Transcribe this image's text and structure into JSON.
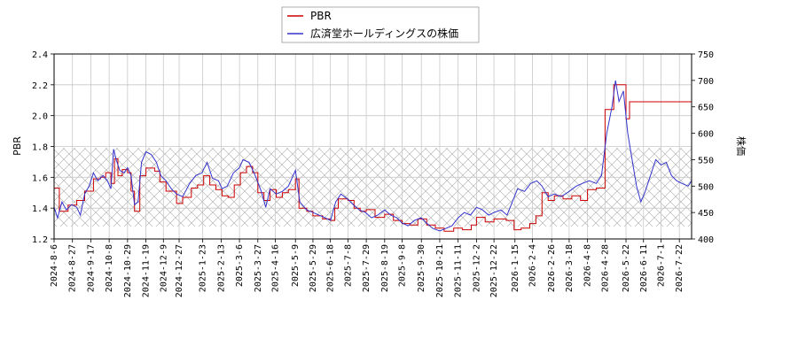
{
  "chart_data": {
    "type": "line",
    "ylabel_left": "PBR",
    "ylabel_right": "株価",
    "ylim_left": [
      1.2,
      2.4
    ],
    "ylim_right": [
      400,
      750
    ],
    "yticks_left": [
      "1.2",
      "1.4",
      "1.6",
      "1.8",
      "2.0",
      "2.2",
      "2.4"
    ],
    "yticks_right": [
      "400",
      "450",
      "500",
      "550",
      "600",
      "650",
      "700",
      "750"
    ],
    "xlim": [
      "2024-08-06",
      "2026-08-05"
    ],
    "xticks": [
      "2024-8-6",
      "2024-8-27",
      "2024-9-17",
      "2024-10-8",
      "2024-10-29",
      "2024-11-19",
      "2024-12-9",
      "2024-12-27",
      "2025-1-23",
      "2025-2-13",
      "2025-3-6",
      "2025-3-27",
      "2025-4-16",
      "2025-5-9",
      "2025-5-29",
      "2025-6-18",
      "2025-7-8",
      "2025-7-29",
      "2025-8-19",
      "2025-9-8",
      "2025-9-30",
      "2025-10-21",
      "2025-11-11",
      "2025-12-2",
      "2025-12-22",
      "2026-1-15",
      "2026-2-4",
      "2026-2-26",
      "2026-3-18",
      "2026-4-8",
      "2026-4-28",
      "2026-5-22",
      "2026-6-11",
      "2026-7-1",
      "2026-7-22"
    ],
    "grid": true,
    "legend_position": "top-center",
    "shaded_band_left": [
      1.28,
      1.79
    ],
    "series": [
      {
        "name": "PBR",
        "color": "#cc0000",
        "axis": "left",
        "points": [
          [
            "2024-08-06",
            1.53
          ],
          [
            "2024-08-12",
            1.38
          ],
          [
            "2024-08-22",
            1.42
          ],
          [
            "2024-09-01",
            1.45
          ],
          [
            "2024-09-10",
            1.51
          ],
          [
            "2024-09-20",
            1.59
          ],
          [
            "2024-09-28",
            1.6
          ],
          [
            "2024-10-04",
            1.63
          ],
          [
            "2024-10-10",
            1.56
          ],
          [
            "2024-10-14",
            1.72
          ],
          [
            "2024-10-18",
            1.61
          ],
          [
            "2024-10-23",
            1.65
          ],
          [
            "2024-10-29",
            1.63
          ],
          [
            "2024-11-02",
            1.51
          ],
          [
            "2024-11-06",
            1.38
          ],
          [
            "2024-11-12",
            1.61
          ],
          [
            "2024-11-19",
            1.66
          ],
          [
            "2024-11-29",
            1.64
          ],
          [
            "2024-12-05",
            1.57
          ],
          [
            "2024-12-12",
            1.51
          ],
          [
            "2024-12-24",
            1.43
          ],
          [
            "2024-12-31",
            1.47
          ],
          [
            "2025-01-10",
            1.53
          ],
          [
            "2025-01-17",
            1.55
          ],
          [
            "2025-01-24",
            1.61
          ],
          [
            "2025-01-31",
            1.55
          ],
          [
            "2025-02-07",
            1.52
          ],
          [
            "2025-02-14",
            1.48
          ],
          [
            "2025-02-21",
            1.47
          ],
          [
            "2025-02-28",
            1.55
          ],
          [
            "2025-03-07",
            1.63
          ],
          [
            "2025-03-14",
            1.67
          ],
          [
            "2025-03-21",
            1.63
          ],
          [
            "2025-03-27",
            1.5
          ],
          [
            "2025-04-03",
            1.45
          ],
          [
            "2025-04-10",
            1.52
          ],
          [
            "2025-04-17",
            1.47
          ],
          [
            "2025-04-24",
            1.5
          ],
          [
            "2025-05-01",
            1.52
          ],
          [
            "2025-05-09",
            1.59
          ],
          [
            "2025-05-13",
            1.4
          ],
          [
            "2025-05-22",
            1.38
          ],
          [
            "2025-05-29",
            1.35
          ],
          [
            "2025-06-09",
            1.33
          ],
          [
            "2025-06-18",
            1.32
          ],
          [
            "2025-06-23",
            1.4
          ],
          [
            "2025-06-27",
            1.46
          ],
          [
            "2025-07-08",
            1.45
          ],
          [
            "2025-07-15",
            1.4
          ],
          [
            "2025-07-22",
            1.38
          ],
          [
            "2025-07-29",
            1.39
          ],
          [
            "2025-08-08",
            1.34
          ],
          [
            "2025-08-19",
            1.36
          ],
          [
            "2025-08-29",
            1.32
          ],
          [
            "2025-09-08",
            1.3
          ],
          [
            "2025-09-17",
            1.29
          ],
          [
            "2025-09-26",
            1.33
          ],
          [
            "2025-10-06",
            1.29
          ],
          [
            "2025-10-16",
            1.27
          ],
          [
            "2025-10-26",
            1.25
          ],
          [
            "2025-11-06",
            1.27
          ],
          [
            "2025-11-16",
            1.26
          ],
          [
            "2025-11-26",
            1.29
          ],
          [
            "2025-12-02",
            1.34
          ],
          [
            "2025-12-12",
            1.31
          ],
          [
            "2025-12-22",
            1.33
          ],
          [
            "2026-01-05",
            1.32
          ],
          [
            "2026-01-14",
            1.26
          ],
          [
            "2026-01-22",
            1.27
          ],
          [
            "2026-02-01",
            1.3
          ],
          [
            "2026-02-08",
            1.35
          ],
          [
            "2026-02-15",
            1.5
          ],
          [
            "2026-02-22",
            1.45
          ],
          [
            "2026-03-01",
            1.48
          ],
          [
            "2026-03-11",
            1.46
          ],
          [
            "2026-03-21",
            1.48
          ],
          [
            "2026-03-31",
            1.45
          ],
          [
            "2026-04-08",
            1.52
          ],
          [
            "2026-04-18",
            1.53
          ],
          [
            "2026-04-28",
            2.04
          ],
          [
            "2026-05-08",
            2.2
          ],
          [
            "2026-05-22",
            1.98
          ],
          [
            "2026-05-26",
            2.09
          ],
          [
            "2026-08-05",
            2.09
          ]
        ]
      },
      {
        "name": "広済堂ホールディングスの株価",
        "color": "#3333cc",
        "axis": "right",
        "points": [
          [
            "2024-08-06",
            460
          ],
          [
            "2024-08-10",
            440
          ],
          [
            "2024-08-15",
            470
          ],
          [
            "2024-08-20",
            455
          ],
          [
            "2024-08-26",
            465
          ],
          [
            "2024-09-01",
            460
          ],
          [
            "2024-09-05",
            445
          ],
          [
            "2024-09-10",
            485
          ],
          [
            "2024-09-15",
            500
          ],
          [
            "2024-09-20",
            525
          ],
          [
            "2024-09-25",
            510
          ],
          [
            "2024-10-01",
            520
          ],
          [
            "2024-10-06",
            510
          ],
          [
            "2024-10-10",
            495
          ],
          [
            "2024-10-13",
            570
          ],
          [
            "2024-10-16",
            550
          ],
          [
            "2024-10-20",
            530
          ],
          [
            "2024-10-25",
            525
          ],
          [
            "2024-10-29",
            535
          ],
          [
            "2024-11-02",
            520
          ],
          [
            "2024-11-06",
            465
          ],
          [
            "2024-11-10",
            470
          ],
          [
            "2024-11-14",
            545
          ],
          [
            "2024-11-19",
            565
          ],
          [
            "2024-11-25",
            560
          ],
          [
            "2024-12-01",
            545
          ],
          [
            "2024-12-06",
            520
          ],
          [
            "2024-12-12",
            510
          ],
          [
            "2024-12-18",
            495
          ],
          [
            "2024-12-24",
            485
          ],
          [
            "2024-12-31",
            480
          ],
          [
            "2025-01-08",
            505
          ],
          [
            "2025-01-15",
            520
          ],
          [
            "2025-01-22",
            525
          ],
          [
            "2025-01-28",
            545
          ],
          [
            "2025-02-03",
            515
          ],
          [
            "2025-02-10",
            510
          ],
          [
            "2025-02-14",
            495
          ],
          [
            "2025-02-20",
            500
          ],
          [
            "2025-02-27",
            525
          ],
          [
            "2025-03-06",
            535
          ],
          [
            "2025-03-10",
            550
          ],
          [
            "2025-03-17",
            545
          ],
          [
            "2025-03-24",
            520
          ],
          [
            "2025-03-31",
            490
          ],
          [
            "2025-04-05",
            460
          ],
          [
            "2025-04-10",
            495
          ],
          [
            "2025-04-17",
            485
          ],
          [
            "2025-04-24",
            490
          ],
          [
            "2025-05-01",
            500
          ],
          [
            "2025-05-09",
            530
          ],
          [
            "2025-05-14",
            470
          ],
          [
            "2025-05-22",
            455
          ],
          [
            "2025-05-29",
            450
          ],
          [
            "2025-06-05",
            445
          ],
          [
            "2025-06-12",
            440
          ],
          [
            "2025-06-18",
            435
          ],
          [
            "2025-06-24",
            470
          ],
          [
            "2025-06-30",
            485
          ],
          [
            "2025-07-08",
            475
          ],
          [
            "2025-07-14",
            465
          ],
          [
            "2025-07-21",
            455
          ],
          [
            "2025-07-28",
            450
          ],
          [
            "2025-08-04",
            440
          ],
          [
            "2025-08-11",
            445
          ],
          [
            "2025-08-19",
            455
          ],
          [
            "2025-08-26",
            445
          ],
          [
            "2025-09-02",
            440
          ],
          [
            "2025-09-08",
            430
          ],
          [
            "2025-09-15",
            425
          ],
          [
            "2025-09-22",
            435
          ],
          [
            "2025-09-30",
            440
          ],
          [
            "2025-10-06",
            430
          ],
          [
            "2025-10-13",
            420
          ],
          [
            "2025-10-21",
            415
          ],
          [
            "2025-10-28",
            420
          ],
          [
            "2025-11-04",
            425
          ],
          [
            "2025-11-11",
            440
          ],
          [
            "2025-11-18",
            450
          ],
          [
            "2025-11-25",
            445
          ],
          [
            "2025-12-02",
            460
          ],
          [
            "2025-12-09",
            455
          ],
          [
            "2025-12-16",
            445
          ],
          [
            "2025-12-22",
            450
          ],
          [
            "2025-12-30",
            455
          ],
          [
            "2026-01-06",
            445
          ],
          [
            "2026-01-12",
            470
          ],
          [
            "2026-01-18",
            495
          ],
          [
            "2026-01-26",
            490
          ],
          [
            "2026-02-02",
            505
          ],
          [
            "2026-02-09",
            510
          ],
          [
            "2026-02-15",
            500
          ],
          [
            "2026-02-22",
            480
          ],
          [
            "2026-03-01",
            485
          ],
          [
            "2026-03-09",
            480
          ],
          [
            "2026-03-18",
            490
          ],
          [
            "2026-03-26",
            500
          ],
          [
            "2026-04-02",
            505
          ],
          [
            "2026-04-10",
            510
          ],
          [
            "2026-04-18",
            505
          ],
          [
            "2026-04-24",
            520
          ],
          [
            "2026-04-30",
            600
          ],
          [
            "2026-05-06",
            650
          ],
          [
            "2026-05-10",
            700
          ],
          [
            "2026-05-14",
            660
          ],
          [
            "2026-05-19",
            680
          ],
          [
            "2026-05-24",
            600
          ],
          [
            "2026-05-28",
            560
          ],
          [
            "2026-06-03",
            500
          ],
          [
            "2026-06-08",
            470
          ],
          [
            "2026-06-13",
            490
          ],
          [
            "2026-06-19",
            520
          ],
          [
            "2026-06-25",
            550
          ],
          [
            "2026-07-01",
            540
          ],
          [
            "2026-07-07",
            545
          ],
          [
            "2026-07-13",
            520
          ],
          [
            "2026-07-19",
            510
          ],
          [
            "2026-07-25",
            505
          ],
          [
            "2026-08-01",
            500
          ],
          [
            "2026-08-05",
            510
          ]
        ]
      }
    ]
  }
}
